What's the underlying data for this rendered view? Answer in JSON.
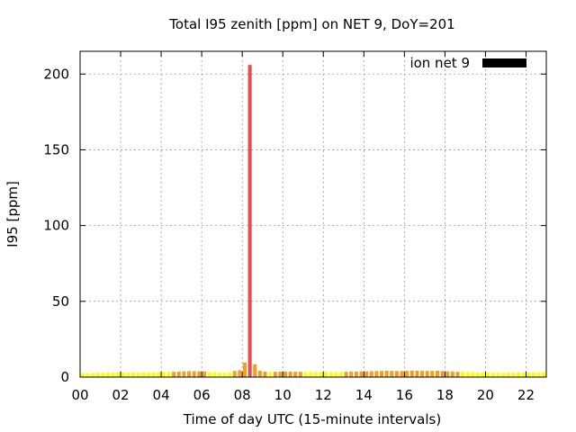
{
  "chart_data": {
    "type": "bar",
    "title": "Total I95 zenith [ppm] on NET 9, DoY=201",
    "xlabel": "Time of day UTC (15-minute intervals)",
    "ylabel": "I95 [ppm]",
    "xlim": [
      0,
      23
    ],
    "ylim": [
      0,
      215
    ],
    "xticks": [
      "00",
      "02",
      "04",
      "06",
      "08",
      "10",
      "12",
      "14",
      "16",
      "18",
      "20",
      "22"
    ],
    "xtick_values": [
      0,
      2,
      4,
      6,
      8,
      10,
      12,
      14,
      16,
      18,
      20,
      22
    ],
    "yticks": [
      0,
      50,
      100,
      150,
      200
    ],
    "grid": true,
    "legend": {
      "label": "ion net 9",
      "position": "top-right",
      "color": "#000000"
    },
    "bar_width_hours": 0.18,
    "colors": {
      "low": "#ffff00",
      "medium": "#f0a020",
      "high": "#e84c4c"
    },
    "thresholds": {
      "medium": 3.5,
      "high": 10
    },
    "series": [
      {
        "x_start": 0.125,
        "x_step": 0.25,
        "values": [
          2.5,
          2.6,
          2.7,
          2.8,
          2.9,
          2.9,
          3.0,
          2.9,
          3.0,
          3.0,
          3.1,
          3.1,
          3.0,
          3.1,
          3.2,
          3.2,
          3.3,
          3.4,
          3.5,
          3.6,
          3.8,
          3.9,
          3.9,
          3.8,
          3.7,
          3.4,
          3.2,
          3.0,
          2.8,
          3.3,
          4.0,
          4.5,
          9.5,
          206,
          8.5,
          4.2,
          3.6,
          3.4,
          3.5,
          3.6,
          3.7,
          3.6,
          3.5,
          3.5,
          3.4,
          3.4,
          3.3,
          3.3,
          3.4,
          3.4,
          3.3,
          3.4,
          3.5,
          3.6,
          3.7,
          3.8,
          3.8,
          3.9,
          4.0,
          4.0,
          4.2,
          4.1,
          4.0,
          3.9,
          4.1,
          4.3,
          4.2,
          4.1,
          4.0,
          4.1,
          4.2,
          4.0,
          3.8,
          3.7,
          3.5,
          3.4,
          3.3,
          3.2,
          3.1,
          3.0,
          3.0,
          2.9,
          2.9,
          2.8,
          2.9,
          3.0,
          3.1,
          3.0,
          3.0,
          3.1,
          3.2,
          3.3
        ]
      }
    ]
  }
}
